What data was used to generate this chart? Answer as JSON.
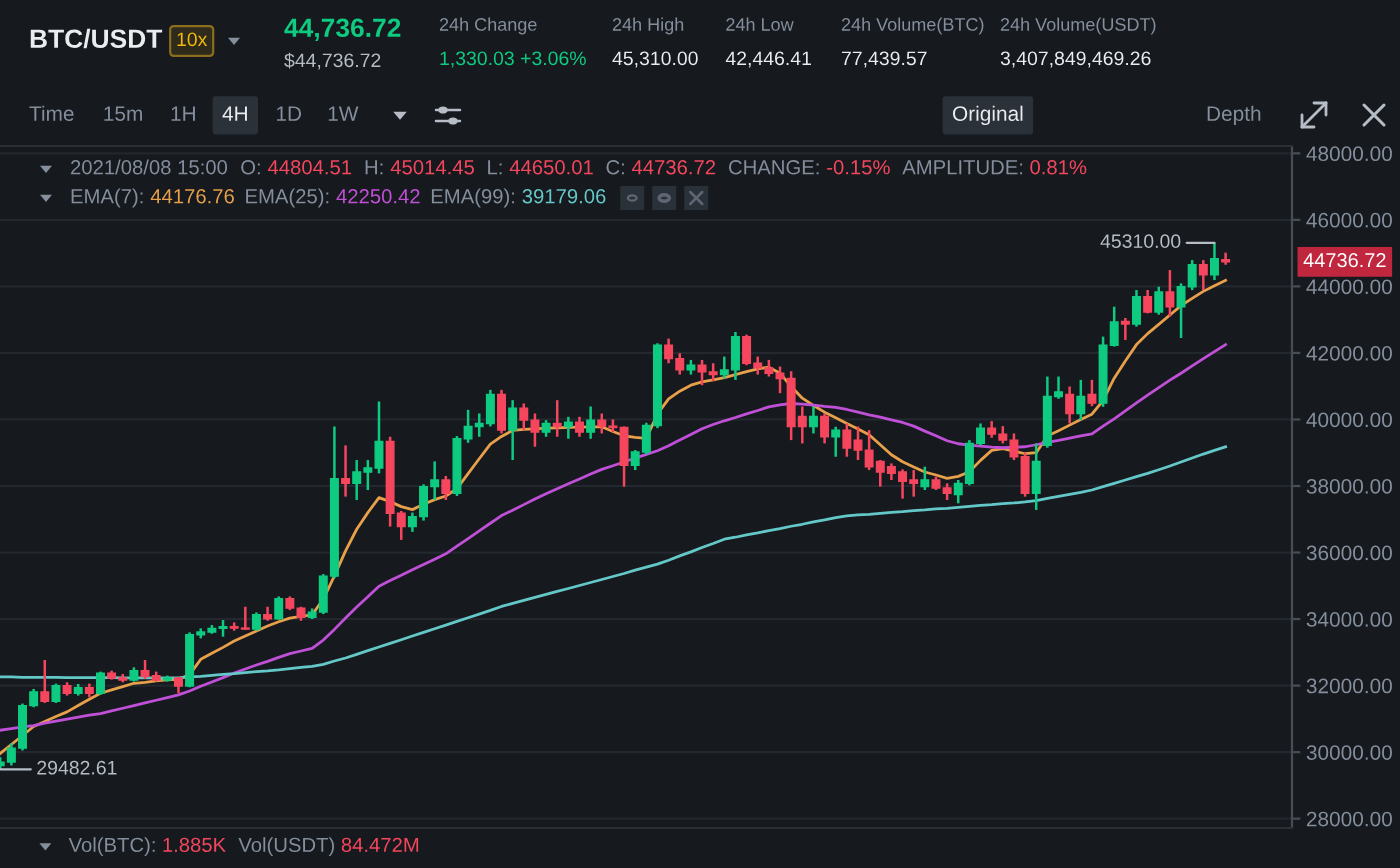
{
  "chart_data": {
    "type": "candlestick",
    "title": "BTC/USDT",
    "categories": [
      null,
      null,
      null,
      null,
      null,
      null,
      null,
      null,
      null,
      null,
      null,
      null,
      null,
      null,
      null,
      null,
      null,
      null,
      null,
      null,
      null,
      null,
      null,
      null,
      null,
      null,
      null,
      null,
      null,
      null,
      null,
      null,
      null,
      null,
      null,
      null,
      null,
      null,
      null,
      null,
      null,
      null,
      null,
      null,
      null,
      null,
      null,
      null,
      null,
      null,
      null,
      null,
      null,
      null,
      null,
      null,
      null,
      null,
      null,
      null,
      null,
      null,
      null,
      null,
      null,
      null,
      null,
      null,
      null,
      null,
      null,
      null,
      null,
      null,
      null,
      null,
      null,
      null,
      null,
      null,
      null,
      null,
      null,
      null,
      null,
      null,
      null,
      null,
      null,
      null,
      null,
      null,
      null,
      null,
      null,
      null,
      null,
      null,
      null,
      null,
      null,
      null,
      null,
      null,
      null,
      null,
      null,
      null,
      null,
      null,
      null
    ],
    "ohlc": [
      [
        29600,
        29850,
        29482.61,
        29700
      ],
      [
        29700,
        30270,
        29600,
        30120
      ],
      [
        30120,
        31460,
        30050,
        31400
      ],
      [
        31400,
        31900,
        31350,
        31810
      ],
      [
        31810,
        32770,
        31480,
        31530
      ],
      [
        31530,
        32060,
        31480,
        32000
      ],
      [
        32000,
        32100,
        31700,
        31770
      ],
      [
        31770,
        32050,
        31700,
        31940
      ],
      [
        31940,
        32060,
        31650,
        31770
      ],
      [
        31770,
        32420,
        31720,
        32370
      ],
      [
        32370,
        32450,
        32180,
        32230
      ],
      [
        32230,
        32350,
        32100,
        32170
      ],
      [
        32170,
        32550,
        32120,
        32450
      ],
      [
        32450,
        32770,
        32200,
        32270
      ],
      [
        32300,
        32420,
        32120,
        32170
      ],
      [
        32170,
        32300,
        32120,
        32230
      ],
      [
        32230,
        32260,
        31770,
        31990
      ],
      [
        31990,
        33600,
        31950,
        33530
      ],
      [
        33530,
        33720,
        33420,
        33610
      ],
      [
        33610,
        33820,
        33560,
        33720
      ],
      [
        33720,
        33970,
        33470,
        33770
      ],
      [
        33770,
        33900,
        33650,
        33730
      ],
      [
        33730,
        34370,
        33670,
        33700
      ],
      [
        33700,
        34200,
        33650,
        34130
      ],
      [
        34130,
        34370,
        33950,
        34010
      ],
      [
        34010,
        34680,
        33980,
        34610
      ],
      [
        34610,
        34680,
        34270,
        34330
      ],
      [
        34330,
        34370,
        33950,
        34050
      ],
      [
        34050,
        34320,
        34000,
        34210
      ],
      [
        34210,
        35350,
        34150,
        35290
      ],
      [
        35290,
        39790,
        35230,
        38220
      ],
      [
        38220,
        39220,
        37680,
        38080
      ],
      [
        38080,
        38780,
        37580,
        38420
      ],
      [
        38420,
        38780,
        37880,
        38540
      ],
      [
        38540,
        40540,
        38380,
        39340
      ],
      [
        39340,
        39480,
        36780,
        37180
      ],
      [
        37180,
        37250,
        36380,
        36780
      ],
      [
        36780,
        37200,
        36620,
        37080
      ],
      [
        37080,
        38050,
        36960,
        37980
      ],
      [
        37980,
        38740,
        37580,
        38180
      ],
      [
        38180,
        38300,
        37580,
        37780
      ],
      [
        37780,
        39500,
        37700,
        39420
      ],
      [
        39420,
        40290,
        39300,
        39790
      ],
      [
        39790,
        40180,
        39480,
        39880
      ],
      [
        39880,
        40890,
        39790,
        40750
      ],
      [
        40750,
        40890,
        39580,
        39680
      ],
      [
        39680,
        40580,
        38780,
        40340
      ],
      [
        40340,
        40480,
        39680,
        39980
      ],
      [
        39980,
        40180,
        39180,
        39620
      ],
      [
        39620,
        39980,
        39480,
        39880
      ],
      [
        39880,
        40580,
        39480,
        39790
      ],
      [
        39790,
        40080,
        39420,
        39920
      ],
      [
        39920,
        40080,
        39480,
        39620
      ],
      [
        39620,
        40390,
        39420,
        39980
      ],
      [
        39980,
        40180,
        39580,
        39800
      ],
      [
        39800,
        40000,
        39620,
        39760
      ],
      [
        39760,
        39790,
        37980,
        38620
      ],
      [
        38620,
        39080,
        38480,
        39020
      ],
      [
        39020,
        39900,
        38950,
        39820
      ],
      [
        39820,
        42290,
        39740,
        42230
      ],
      [
        42230,
        42430,
        41690,
        41830
      ],
      [
        41830,
        41990,
        41350,
        41490
      ],
      [
        41490,
        41790,
        41350,
        41630
      ],
      [
        41630,
        41790,
        41030,
        41430
      ],
      [
        41430,
        41690,
        41150,
        41350
      ],
      [
        41350,
        41890,
        41230,
        41490
      ],
      [
        41490,
        42630,
        41190,
        42490
      ],
      [
        42490,
        42550,
        41630,
        41690
      ],
      [
        41690,
        41890,
        41350,
        41550
      ],
      [
        41550,
        41790,
        41290,
        41390
      ],
      [
        41390,
        41590,
        40790,
        41230
      ],
      [
        41230,
        41450,
        39380,
        39790
      ],
      [
        40090,
        40390,
        39280,
        39790
      ],
      [
        39790,
        40390,
        39580,
        40090
      ],
      [
        40090,
        40180,
        39280,
        39480
      ],
      [
        39480,
        39780,
        38880,
        39680
      ],
      [
        39680,
        39880,
        38880,
        39140
      ],
      [
        39380,
        39790,
        38780,
        39080
      ],
      [
        39080,
        39680,
        38480,
        38580
      ],
      [
        38740,
        38780,
        37980,
        38420
      ],
      [
        38580,
        38680,
        38180,
        38380
      ],
      [
        38420,
        38500,
        37620,
        38140
      ],
      [
        38180,
        38480,
        37680,
        38080
      ],
      [
        37980,
        38580,
        37880,
        38180
      ],
      [
        38180,
        38280,
        37880,
        37940
      ],
      [
        37940,
        38080,
        37580,
        37780
      ],
      [
        37740,
        38180,
        37480,
        38080
      ],
      [
        38080,
        39380,
        38020,
        39280
      ],
      [
        39280,
        39880,
        39220,
        39740
      ],
      [
        39740,
        39950,
        39450,
        39560
      ],
      [
        39560,
        39800,
        39280,
        39380
      ],
      [
        39380,
        39580,
        38780,
        38880
      ],
      [
        38880,
        39000,
        37680,
        37780
      ],
      [
        37780,
        39280,
        37280,
        38740
      ],
      [
        39220,
        41290,
        39150,
        40690
      ],
      [
        40690,
        41290,
        40620,
        40830
      ],
      [
        40750,
        40990,
        39880,
        40180
      ],
      [
        40180,
        41190,
        39980,
        40690
      ],
      [
        40750,
        41190,
        40400,
        40490
      ],
      [
        40490,
        42490,
        40380,
        42230
      ],
      [
        42230,
        43390,
        42190,
        42930
      ],
      [
        42950,
        43050,
        42390,
        42870
      ],
      [
        42870,
        43890,
        42790,
        43690
      ],
      [
        43690,
        43890,
        43190,
        43230
      ],
      [
        43230,
        43990,
        43150,
        43830
      ],
      [
        43830,
        44490,
        43090,
        43390
      ],
      [
        43390,
        44090,
        42450,
        43990
      ],
      [
        43990,
        44790,
        43890,
        44650
      ],
      [
        44650,
        44790,
        43890,
        44350
      ],
      [
        44350,
        45310.0,
        44190,
        44830
      ],
      [
        44804.51,
        45014.45,
        44650.01,
        44736.72
      ]
    ],
    "colors": [
      "#0ecb81",
      "#0ecb81",
      "#0ecb81",
      "#0ecb81",
      "#f6465d",
      "#0ecb81",
      "#f6465d",
      "#0ecb81",
      "#f6465d",
      "#0ecb81",
      "#f6465d",
      "#f6465d",
      "#0ecb81",
      "#f6465d",
      "#f6465d",
      "#0ecb81",
      "#f6465d",
      "#0ecb81",
      "#0ecb81",
      "#0ecb81",
      "#0ecb81",
      "#f6465d",
      "#f6465d",
      "#0ecb81",
      "#f6465d",
      "#0ecb81",
      "#f6465d",
      "#f6465d",
      "#0ecb81",
      "#0ecb81",
      "#0ecb81",
      "#f6465d",
      "#0ecb81",
      "#0ecb81",
      "#0ecb81",
      "#f6465d",
      "#f6465d",
      "#0ecb81",
      "#0ecb81",
      "#0ecb81",
      "#f6465d",
      "#0ecb81",
      "#0ecb81",
      "#0ecb81",
      "#0ecb81",
      "#f6465d",
      "#0ecb81",
      "#f6465d",
      "#f6465d",
      "#0ecb81",
      "#f6465d",
      "#0ecb81",
      "#f6465d",
      "#0ecb81",
      "#f6465d",
      "#f6465d",
      "#f6465d",
      "#0ecb81",
      "#0ecb81",
      "#0ecb81",
      "#f6465d",
      "#f6465d",
      "#0ecb81",
      "#f6465d",
      "#f6465d",
      "#0ecb81",
      "#0ecb81",
      "#f6465d",
      "#f6465d",
      "#f6465d",
      "#f6465d",
      "#f6465d",
      "#f6465d",
      "#0ecb81",
      "#f6465d",
      "#0ecb81",
      "#f6465d",
      "#f6465d",
      "#f6465d",
      "#f6465d",
      "#f6465d",
      "#f6465d",
      "#f6465d",
      "#0ecb81",
      "#f6465d",
      "#f6465d",
      "#0ecb81",
      "#0ecb81",
      "#0ecb81",
      "#f6465d",
      "#f6465d",
      "#f6465d",
      "#f6465d",
      "#0ecb81",
      "#0ecb81",
      "#0ecb81",
      "#f6465d",
      "#0ecb81",
      "#f6465d",
      "#0ecb81",
      "#0ecb81",
      "#f6465d",
      "#0ecb81",
      "#f6465d",
      "#0ecb81",
      "#f6465d",
      "#0ecb81",
      "#0ecb81",
      "#f6465d",
      "#0ecb81",
      "#f6465d"
    ],
    "series": [
      {
        "type": "line",
        "color": "#e8a04a",
        "values": [
          29960,
          30230,
          30500,
          30770,
          30920,
          31070,
          31210,
          31400,
          31590,
          31770,
          31870,
          31970,
          32070,
          32100,
          32140,
          32170,
          32190,
          32330,
          32790,
          32970,
          33150,
          33340,
          33490,
          33640,
          33790,
          33920,
          34030,
          34080,
          34130,
          34600,
          35300,
          36050,
          36700,
          37200,
          37650,
          37530,
          37380,
          37290,
          37450,
          37590,
          37700,
          37920,
          38370,
          38820,
          39260,
          39490,
          39670,
          39700,
          39720,
          39740,
          39750,
          39760,
          39770,
          39780,
          39780,
          39640,
          39510,
          39460,
          39430,
          40170,
          40620,
          40850,
          41030,
          41130,
          41190,
          41260,
          41350,
          41440,
          41520,
          41570,
          41390,
          40990,
          40640,
          40420,
          40220,
          40050,
          39880,
          39710,
          39540,
          39240,
          38940,
          38730,
          38570,
          38420,
          38330,
          38230,
          38290,
          38430,
          38770,
          39070,
          39120,
          39050,
          38970,
          39000,
          39500,
          39660,
          39830,
          40000,
          40160,
          40570,
          41240,
          41760,
          42250,
          42580,
          42860,
          43140,
          43420,
          43640,
          43850,
          44020,
          44180
        ]
      },
      {
        "type": "line",
        "color": "#c150d8",
        "values": [
          30660,
          30710,
          30760,
          30800,
          30870,
          30930,
          30990,
          31050,
          31110,
          31160,
          31240,
          31320,
          31400,
          31480,
          31560,
          31640,
          31720,
          31840,
          31980,
          32110,
          32240,
          32380,
          32500,
          32620,
          32730,
          32850,
          32960,
          33040,
          33120,
          33370,
          33690,
          34030,
          34360,
          34670,
          34990,
          35160,
          35320,
          35480,
          35640,
          35800,
          35960,
          36190,
          36420,
          36650,
          36880,
          37110,
          37270,
          37440,
          37610,
          37770,
          37920,
          38070,
          38210,
          38360,
          38500,
          38610,
          38720,
          38840,
          38950,
          39060,
          39210,
          39380,
          39550,
          39720,
          39850,
          39960,
          40060,
          40170,
          40270,
          40380,
          40440,
          40480,
          40460,
          40430,
          40390,
          40360,
          40300,
          40220,
          40140,
          40070,
          39990,
          39910,
          39800,
          39650,
          39510,
          39360,
          39270,
          39230,
          39200,
          39170,
          39150,
          39170,
          39180,
          39240,
          39310,
          39370,
          39440,
          39510,
          39570,
          39800,
          40020,
          40260,
          40500,
          40730,
          40960,
          41180,
          41390,
          41610,
          41830,
          42040,
          42250
        ]
      },
      {
        "type": "line",
        "color": "#64c8c8",
        "values": [
          32260,
          32260,
          32250,
          32250,
          32250,
          32250,
          32240,
          32240,
          32240,
          32240,
          32240,
          32230,
          32230,
          32230,
          32230,
          32230,
          32230,
          32260,
          32280,
          32310,
          32340,
          32360,
          32390,
          32420,
          32440,
          32470,
          32510,
          32550,
          32580,
          32640,
          32740,
          32830,
          32940,
          33050,
          33160,
          33270,
          33380,
          33490,
          33600,
          33710,
          33820,
          33930,
          34040,
          34150,
          34260,
          34380,
          34470,
          34560,
          34650,
          34740,
          34830,
          34920,
          35010,
          35100,
          35190,
          35280,
          35370,
          35470,
          35560,
          35650,
          35770,
          35900,
          36020,
          36150,
          36270,
          36400,
          36460,
          36530,
          36590,
          36660,
          36720,
          36790,
          36850,
          36920,
          36980,
          37050,
          37100,
          37130,
          37150,
          37180,
          37210,
          37230,
          37260,
          37280,
          37310,
          37330,
          37360,
          37390,
          37420,
          37440,
          37470,
          37490,
          37520,
          37560,
          37630,
          37690,
          37750,
          37810,
          37880,
          37980,
          38080,
          38180,
          38280,
          38380,
          38490,
          38600,
          38720,
          38840,
          38960,
          39070,
          39180
        ]
      }
    ],
    "ylim": [
      27720,
      48220
    ],
    "yticks": [
      {
        "value": 28000,
        "label": "28000.00"
      },
      {
        "value": 30000,
        "label": "30000.00"
      },
      {
        "value": 32000,
        "label": "32000.00"
      },
      {
        "value": 34000,
        "label": "34000.00"
      },
      {
        "value": 36000,
        "label": "36000.00"
      },
      {
        "value": 38000,
        "label": "38000.00"
      },
      {
        "value": 40000,
        "label": "40000.00"
      },
      {
        "value": 42000,
        "label": "42000.00"
      },
      {
        "value": 44000,
        "label": "44000.00"
      },
      {
        "value": 46000,
        "label": "46000.00"
      },
      {
        "value": 48000,
        "label": "48000.00"
      }
    ],
    "grid": "y",
    "tick_labels": "y",
    "annotations": [
      "10x",
      "44,736.72",
      "$44,736.72",
      "24h Change",
      "1,330.03 +3.06%",
      "24h High",
      "45,310.00",
      "24h Low",
      "42,446.41",
      "24h Volume(BTC)",
      "77,439.57",
      "24h Volume(USDT)",
      "3,407,849,469.26",
      "Time",
      "15m",
      "1H",
      "4H",
      "1D",
      "1W",
      "Original",
      "Depth",
      "2021/08/08 15:00",
      "O:",
      "44804.51",
      "H:",
      "45014.45",
      "L:",
      "44650.01",
      "C:",
      "44736.72",
      "CHANGE:",
      "-0.15%",
      "AMPLITUDE:",
      "0.81%",
      "EMA(7):",
      "44176.76",
      "EMA(25):",
      "42250.42",
      "EMA(99):",
      "39179.06",
      "Vol(BTC):",
      "1.885K",
      "Vol(USDT)",
      "84.472M",
      "45310.00",
      "29482.61",
      "44736.72"
    ]
  }
}
